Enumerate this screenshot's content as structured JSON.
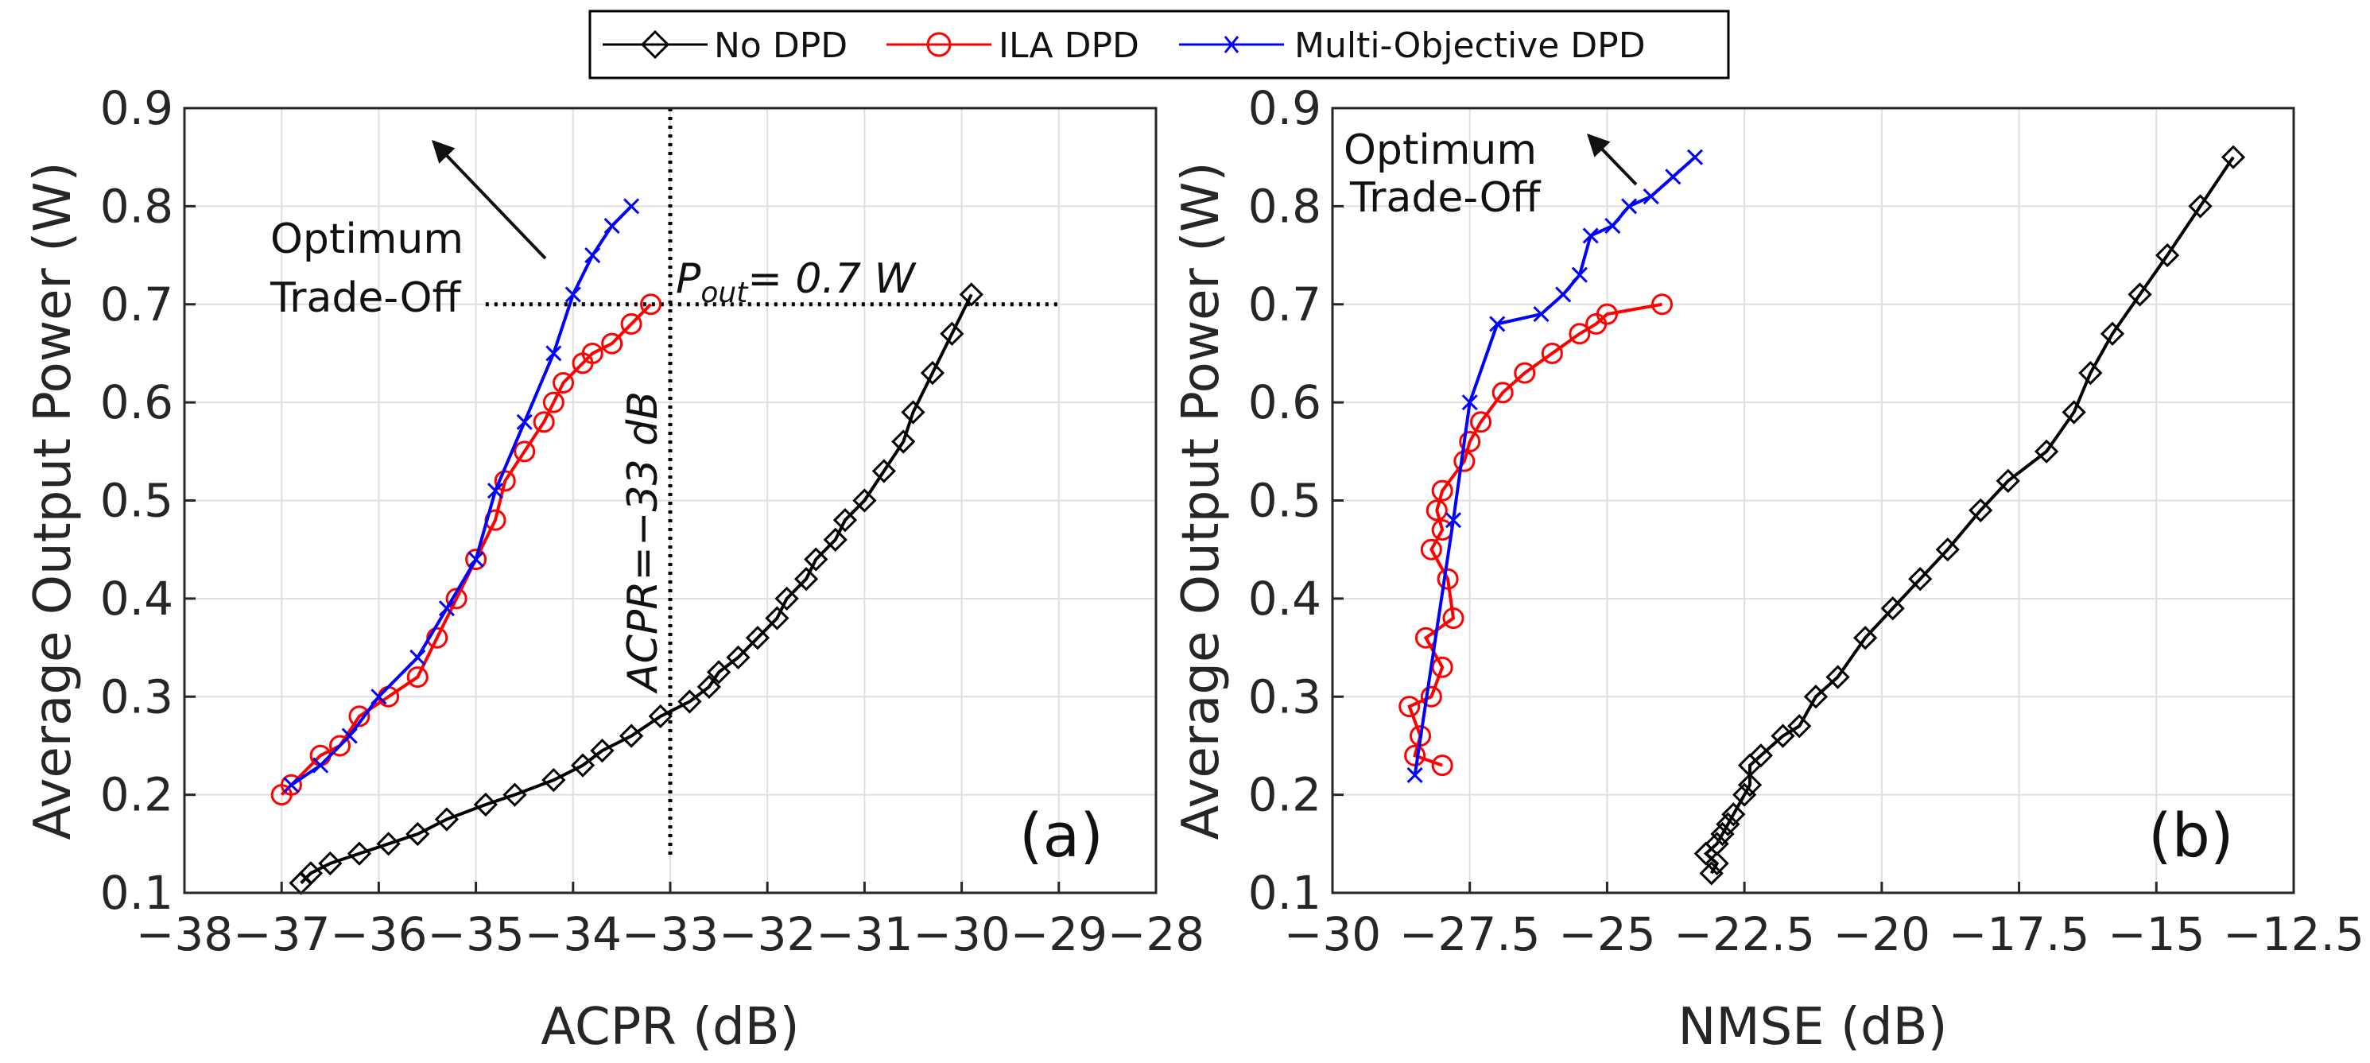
{
  "legend": [
    {
      "name": "No DPD",
      "color": "#000000",
      "marker": "diamond"
    },
    {
      "name": "ILA DPD",
      "color": "#ff0000",
      "marker": "circle"
    },
    {
      "name": "Multi-Objective DPD",
      "color": "#0000ff",
      "marker": "x"
    }
  ],
  "chart_data": [
    {
      "type": "line",
      "panel_label": "(a)",
      "xlabel": "ACPR (dB)",
      "ylabel": "Average Output Power (W)",
      "xlim": [
        -38,
        -28
      ],
      "ylim": [
        0.1,
        0.9
      ],
      "xticks": [
        -38,
        -37,
        -36,
        -35,
        -34,
        -33,
        -32,
        -31,
        -30,
        -29,
        -28
      ],
      "xtick_labels": [
        "−38",
        "−37",
        "−36",
        "−35",
        "−34",
        "−33",
        "−32",
        "−31",
        "−30",
        "−29",
        "−28"
      ],
      "yticks": [
        0.1,
        0.2,
        0.3,
        0.4,
        0.5,
        0.6,
        0.7,
        0.8,
        0.9
      ],
      "ytick_labels": [
        "0.1",
        "0.2",
        "0.3",
        "0.4",
        "0.5",
        "0.6",
        "0.7",
        "0.8",
        "0.9"
      ],
      "grid": true,
      "series": [
        {
          "name": "No DPD",
          "color": "#000000",
          "marker": "diamond",
          "x": [
            -36.8,
            -36.7,
            -36.5,
            -36.2,
            -35.9,
            -35.6,
            -35.3,
            -34.9,
            -34.6,
            -34.2,
            -33.9,
            -33.7,
            -33.4,
            -33.1,
            -32.8,
            -32.6,
            -32.5,
            -32.3,
            -32.1,
            -31.9,
            -31.8,
            -31.6,
            -31.5,
            -31.3,
            -31.2,
            -31.0,
            -30.8,
            -30.6,
            -30.5,
            -30.3,
            -30.1,
            -29.9
          ],
          "y": [
            0.11,
            0.12,
            0.13,
            0.14,
            0.15,
            0.16,
            0.175,
            0.19,
            0.2,
            0.215,
            0.23,
            0.245,
            0.26,
            0.28,
            0.295,
            0.31,
            0.325,
            0.34,
            0.36,
            0.38,
            0.4,
            0.42,
            0.44,
            0.46,
            0.48,
            0.5,
            0.53,
            0.56,
            0.59,
            0.63,
            0.67,
            0.71
          ]
        },
        {
          "name": "ILA DPD",
          "color": "#ff0000",
          "marker": "circle",
          "x": [
            -37.0,
            -36.9,
            -36.6,
            -36.4,
            -36.2,
            -35.9,
            -35.6,
            -35.4,
            -35.2,
            -35.0,
            -34.8,
            -34.7,
            -34.5,
            -34.3,
            -34.2,
            -34.1,
            -33.9,
            -33.8,
            -33.6,
            -33.4,
            -33.2
          ],
          "y": [
            0.2,
            0.21,
            0.24,
            0.25,
            0.28,
            0.3,
            0.32,
            0.36,
            0.4,
            0.44,
            0.48,
            0.52,
            0.55,
            0.58,
            0.6,
            0.62,
            0.64,
            0.65,
            0.66,
            0.68,
            0.7
          ]
        },
        {
          "name": "Multi-Objective DPD",
          "color": "#0000ff",
          "marker": "x",
          "x": [
            -36.9,
            -36.6,
            -36.3,
            -36.0,
            -35.6,
            -35.3,
            -35.0,
            -34.8,
            -34.5,
            -34.2,
            -34.0,
            -33.8,
            -33.6,
            -33.4
          ],
          "y": [
            0.21,
            0.23,
            0.26,
            0.3,
            0.34,
            0.39,
            0.44,
            0.51,
            0.58,
            0.65,
            0.71,
            0.75,
            0.78,
            0.8
          ]
        }
      ],
      "reference_lines": {
        "horizontal_value": 0.7,
        "vertical_value": -33
      },
      "annotations": {
        "trade_off_line1": "Optimum",
        "trade_off_line2": "Trade-Off",
        "pout_main": "P",
        "pout_sub": "out",
        "pout_rest": "= 0.7 W",
        "acpr_label": "ACPR=−33 dB"
      }
    },
    {
      "type": "line",
      "panel_label": "(b)",
      "xlabel": "NMSE (dB)",
      "ylabel": "Average Output Power (W)",
      "xlim": [
        -30,
        -12.5
      ],
      "ylim": [
        0.1,
        0.9
      ],
      "xticks": [
        -30,
        -27.5,
        -25,
        -22.5,
        -20,
        -17.5,
        -15,
        -12.5
      ],
      "xtick_labels": [
        "−30",
        "−27.5",
        "−25",
        "−22.5",
        "−20",
        "−17.5",
        "−15",
        "−12.5"
      ],
      "yticks": [
        0.1,
        0.2,
        0.3,
        0.4,
        0.5,
        0.6,
        0.7,
        0.8,
        0.9
      ],
      "ytick_labels": [
        "0.1",
        "0.2",
        "0.3",
        "0.4",
        "0.5",
        "0.6",
        "0.7",
        "0.8",
        "0.9"
      ],
      "grid": true,
      "series": [
        {
          "name": "No DPD",
          "color": "#000000",
          "marker": "diamond",
          "x": [
            -23.1,
            -23.0,
            -23.2,
            -23.0,
            -22.9,
            -22.8,
            -22.7,
            -22.5,
            -22.4,
            -22.4,
            -22.2,
            -21.8,
            -21.5,
            -21.2,
            -20.8,
            -20.3,
            -19.8,
            -19.3,
            -18.8,
            -18.2,
            -17.7,
            -17.0,
            -16.5,
            -16.2,
            -15.8,
            -15.3,
            -14.8,
            -14.2,
            -13.6
          ],
          "y": [
            0.12,
            0.13,
            0.14,
            0.15,
            0.16,
            0.17,
            0.18,
            0.2,
            0.21,
            0.23,
            0.24,
            0.26,
            0.27,
            0.3,
            0.32,
            0.36,
            0.39,
            0.42,
            0.45,
            0.49,
            0.52,
            0.55,
            0.59,
            0.63,
            0.67,
            0.71,
            0.75,
            0.8,
            0.85
          ]
        },
        {
          "name": "ILA DPD",
          "color": "#ff0000",
          "marker": "circle",
          "x": [
            -28.0,
            -28.5,
            -28.4,
            -28.6,
            -28.2,
            -28.0,
            -28.3,
            -27.8,
            -27.9,
            -28.2,
            -28.0,
            -28.1,
            -28.0,
            -27.6,
            -27.5,
            -27.3,
            -26.9,
            -26.5,
            -26.0,
            -25.5,
            -25.2,
            -25.0,
            -24.0
          ],
          "y": [
            0.23,
            0.24,
            0.26,
            0.29,
            0.3,
            0.33,
            0.36,
            0.38,
            0.42,
            0.45,
            0.47,
            0.49,
            0.51,
            0.54,
            0.56,
            0.58,
            0.61,
            0.63,
            0.65,
            0.67,
            0.68,
            0.69,
            0.7
          ]
        },
        {
          "name": "Multi-Objective DPD",
          "color": "#0000ff",
          "marker": "x",
          "x": [
            -28.5,
            -27.8,
            -27.5,
            -27.0,
            -26.2,
            -25.8,
            -25.5,
            -25.3,
            -24.9,
            -24.6,
            -24.2,
            -23.8,
            -23.4
          ],
          "y": [
            0.22,
            0.48,
            0.6,
            0.68,
            0.69,
            0.71,
            0.73,
            0.77,
            0.78,
            0.8,
            0.81,
            0.83,
            0.85
          ]
        }
      ],
      "annotations": {
        "trade_off_line1": "Optimum",
        "trade_off_line2": "Trade-Off"
      }
    }
  ]
}
